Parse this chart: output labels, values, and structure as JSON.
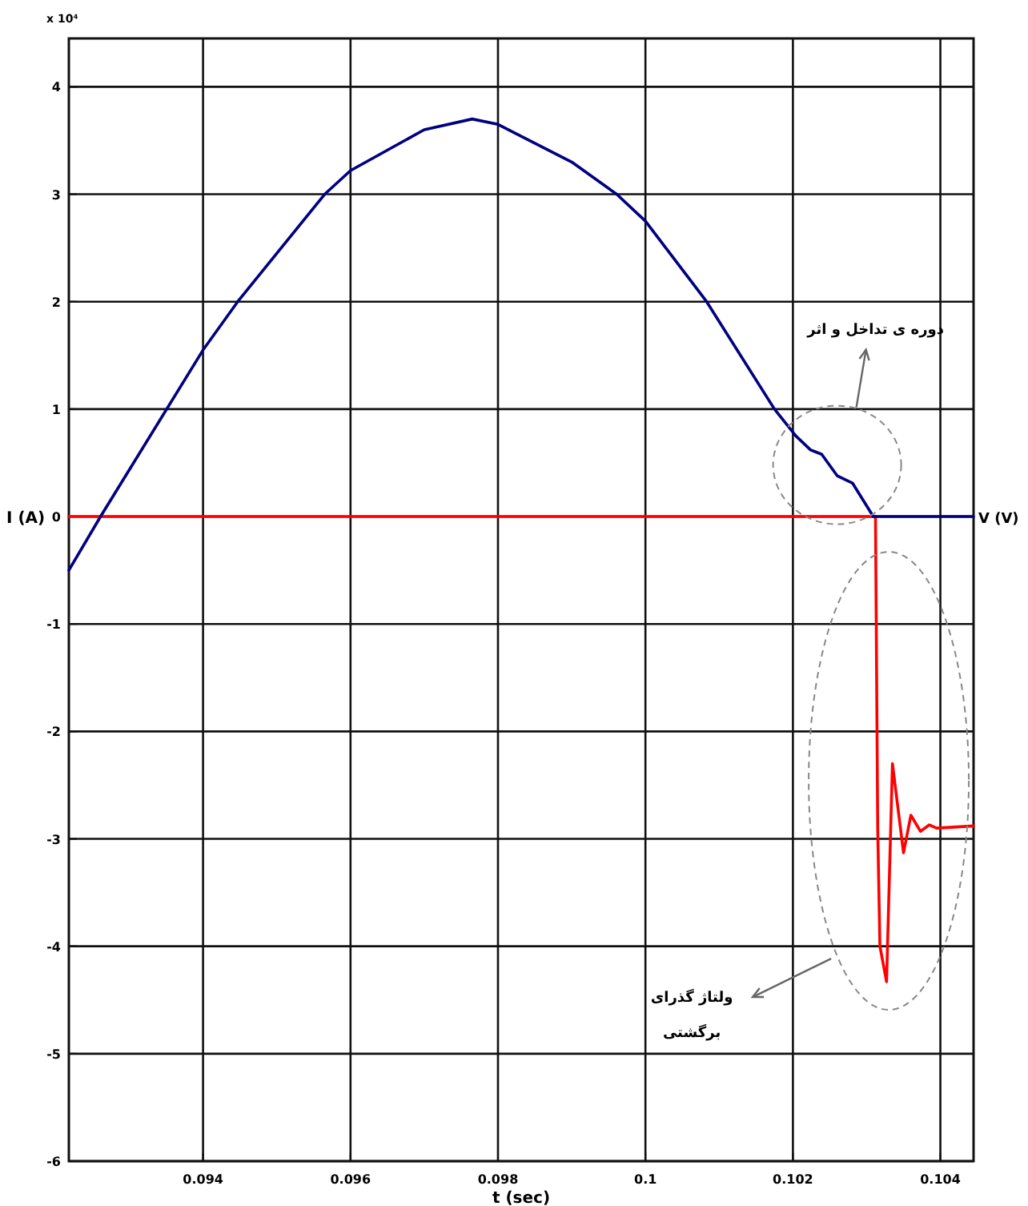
{
  "chart_data": {
    "type": "line",
    "xlabel": "t (sec)",
    "ylabel": "I (A)",
    "xlim": [
      0.09218,
      0.10445
    ],
    "ylim": [
      -6,
      4.45
    ],
    "xticks": [
      0.094,
      0.096,
      0.098,
      0.1,
      0.102,
      0.104
    ],
    "yticks": [
      -6,
      -5,
      -4,
      -3,
      -2,
      -1,
      0,
      1,
      2,
      3,
      4
    ],
    "grid": true,
    "annotations": [
      "x 10⁴",
      "V (V)",
      "دوره ی تداخل و اثر",
      "ولتاژ گذرای\nبرگشتی"
    ],
    "series": [
      {
        "color": "#000080",
        "x": [
          0.09218,
          0.09261,
          0.094,
          0.09447,
          0.09565,
          0.096,
          0.097,
          0.09765,
          0.098,
          0.099,
          0.09961,
          0.1,
          0.10083,
          0.10175,
          0.10204,
          0.10224,
          0.10239,
          0.1026,
          0.10281,
          0.10309,
          0.10445
        ],
        "values": [
          -0.5,
          0,
          1.55,
          2.0,
          3.0,
          3.22,
          3.6,
          3.7,
          3.65,
          3.3,
          3.0,
          2.75,
          2.0,
          1.0,
          0.75,
          0.62,
          0.58,
          0.38,
          0.31,
          0,
          0
        ]
      },
      {
        "color": "#ff0000",
        "x": [
          0.09218,
          0.10312,
          0.10315,
          0.10318,
          0.10327,
          0.10335,
          0.1035,
          0.1036,
          0.10373,
          0.10385,
          0.10395,
          0.10445
        ],
        "values": [
          0,
          0,
          -2.9,
          -4.0,
          -4.33,
          -2.3,
          -3.13,
          -2.78,
          -2.93,
          -2.87,
          -2.9,
          -2.88
        ]
      }
    ]
  }
}
